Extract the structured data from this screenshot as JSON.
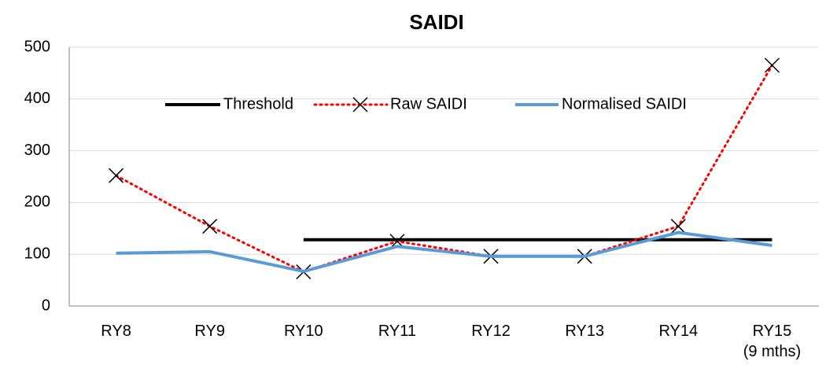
{
  "chart_data": {
    "type": "line",
    "title": "SAIDI",
    "categories": [
      "RY8",
      "RY9",
      "RY10",
      "RY11",
      "RY12",
      "RY13",
      "RY14",
      "RY15\n(9 mths)"
    ],
    "series": [
      {
        "name": "Threshold",
        "color": "#000000",
        "width": 4,
        "dash": "solid",
        "marker": "none",
        "values": [
          null,
          null,
          128,
          128,
          128,
          128,
          128,
          128
        ]
      },
      {
        "name": "Raw SAIDI",
        "color": "#ff0000",
        "width": 3,
        "dash": "dotted",
        "marker": "x",
        "values": [
          252,
          154,
          66,
          125,
          96,
          96,
          154,
          465
        ]
      },
      {
        "name": "Normalised SAIDI",
        "color": "#5b9bd5",
        "width": 4,
        "dash": "solid",
        "marker": "none",
        "values": [
          102,
          105,
          67,
          115,
          96,
          96,
          142,
          117
        ]
      }
    ],
    "ylim": [
      0,
      500
    ],
    "yticks": [
      0,
      100,
      200,
      300,
      400,
      500
    ],
    "grid": true,
    "legend": "top"
  }
}
